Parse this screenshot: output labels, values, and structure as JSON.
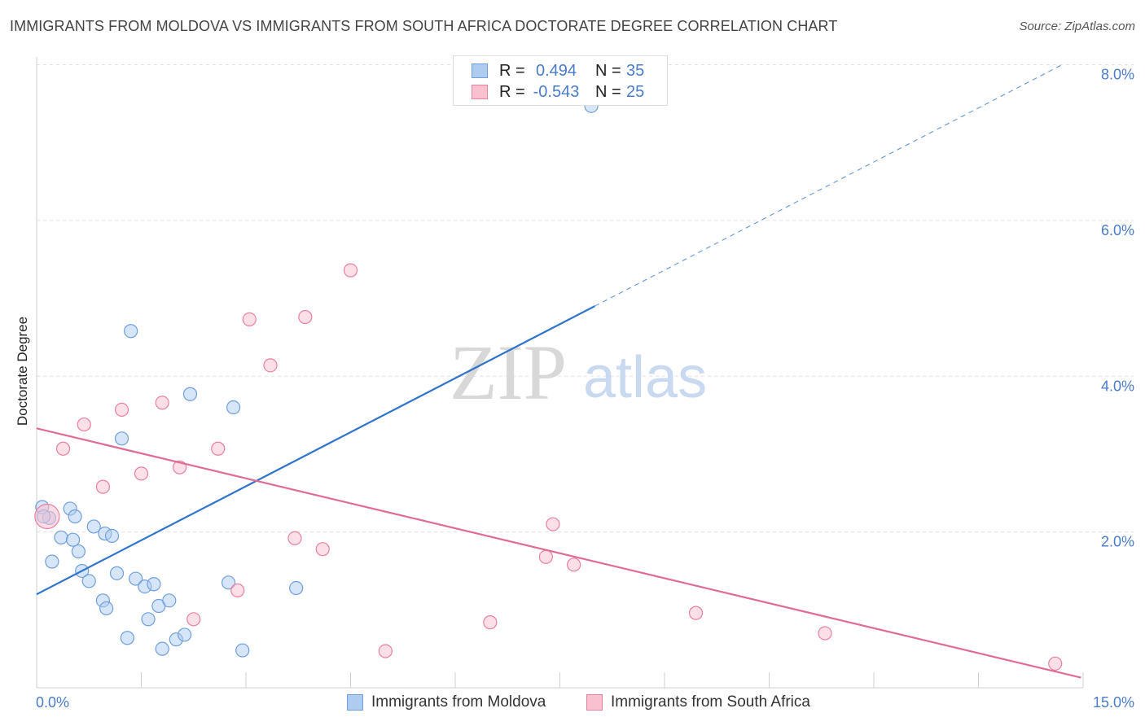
{
  "title": "IMMIGRANTS FROM MOLDOVA VS IMMIGRANTS FROM SOUTH AFRICA DOCTORATE DEGREE CORRELATION CHART",
  "source": "Source: ZipAtlas.com",
  "watermark": {
    "zip": "ZIP",
    "atlas": "atlas"
  },
  "legend_top": {
    "rows": [
      {
        "r_label": "R =",
        "r_value": "0.494",
        "n_label": "N =",
        "n_value": "35",
        "color": "#aecbf0",
        "stroke": "#6f9fdc"
      },
      {
        "r_label": "R =",
        "r_value": "-0.543",
        "n_label": "N =",
        "n_value": "25",
        "color": "#f9c0d0",
        "stroke": "#e8819f"
      }
    ]
  },
  "chart_data": {
    "type": "scatter",
    "title": "IMMIGRANTS FROM MOLDOVA VS IMMIGRANTS FROM SOUTH AFRICA DOCTORATE DEGREE CORRELATION CHART",
    "xlabel": "",
    "ylabel": "Doctorate Degree",
    "xlim": [
      0,
      15
    ],
    "ylim": [
      0,
      8.2
    ],
    "x_tick_labels": [
      "0.0%",
      "15.0%"
    ],
    "y_ticks": [
      2,
      4,
      6,
      8
    ],
    "y_tick_labels": [
      "2.0%",
      "4.0%",
      "6.0%",
      "8.0%"
    ],
    "grid": true,
    "legend_position": "bottom",
    "series": [
      {
        "name": "Immigrants from Moldova",
        "color": "#aecbf0",
        "stroke": "#6f9fdc",
        "line_color": "#2f74cc",
        "trend": {
          "x0": 0,
          "y0": 1.2,
          "x1": 8.0,
          "y1": 4.9,
          "dash_x1": 14.7,
          "dash_y1": 8.0
        },
        "points": [
          [
            0.08,
            2.32
          ],
          [
            0.18,
            2.18
          ],
          [
            0.35,
            1.93
          ],
          [
            0.48,
            2.3
          ],
          [
            0.52,
            1.9
          ],
          [
            0.55,
            2.2
          ],
          [
            0.22,
            1.62
          ],
          [
            0.6,
            1.75
          ],
          [
            0.65,
            1.5
          ],
          [
            0.82,
            2.07
          ],
          [
            0.75,
            1.37
          ],
          [
            0.98,
            1.98
          ],
          [
            0.95,
            1.12
          ],
          [
            1.08,
            1.95
          ],
          [
            1.15,
            1.47
          ],
          [
            1.0,
            1.02
          ],
          [
            1.35,
            4.58
          ],
          [
            1.22,
            3.2
          ],
          [
            1.42,
            1.4
          ],
          [
            1.55,
            1.3
          ],
          [
            1.68,
            1.33
          ],
          [
            1.6,
            0.88
          ],
          [
            1.75,
            1.05
          ],
          [
            1.9,
            1.12
          ],
          [
            1.8,
            0.5
          ],
          [
            2.0,
            0.62
          ],
          [
            2.12,
            0.68
          ],
          [
            2.2,
            3.77
          ],
          [
            2.75,
            1.35
          ],
          [
            2.82,
            3.6
          ],
          [
            2.95,
            0.48
          ],
          [
            1.3,
            0.64
          ],
          [
            3.72,
            1.28
          ],
          [
            7.95,
            7.47
          ],
          [
            0.1,
            2.2
          ]
        ]
      },
      {
        "name": "Immigrants from South Africa",
        "color": "#f9c0d0",
        "stroke": "#e8819f",
        "line_color": "#e06b93",
        "trend": {
          "x0": 0,
          "y0": 3.33,
          "x1": 14.97,
          "y1": 0.13
        },
        "points": [
          [
            0.15,
            2.2
          ],
          [
            0.38,
            3.07
          ],
          [
            0.68,
            3.38
          ],
          [
            0.95,
            2.58
          ],
          [
            1.22,
            3.57
          ],
          [
            1.5,
            2.75
          ],
          [
            1.8,
            3.66
          ],
          [
            2.05,
            2.83
          ],
          [
            2.25,
            0.88
          ],
          [
            2.6,
            3.07
          ],
          [
            2.88,
            1.25
          ],
          [
            3.05,
            4.73
          ],
          [
            3.35,
            4.14
          ],
          [
            3.7,
            1.92
          ],
          [
            3.85,
            4.76
          ],
          [
            4.1,
            1.78
          ],
          [
            4.5,
            5.36
          ],
          [
            5.0,
            0.47
          ],
          [
            6.5,
            0.84
          ],
          [
            7.3,
            1.68
          ],
          [
            7.4,
            2.1
          ],
          [
            7.7,
            1.58
          ],
          [
            9.45,
            0.96
          ],
          [
            11.3,
            0.7
          ],
          [
            14.6,
            0.31
          ]
        ]
      }
    ]
  }
}
